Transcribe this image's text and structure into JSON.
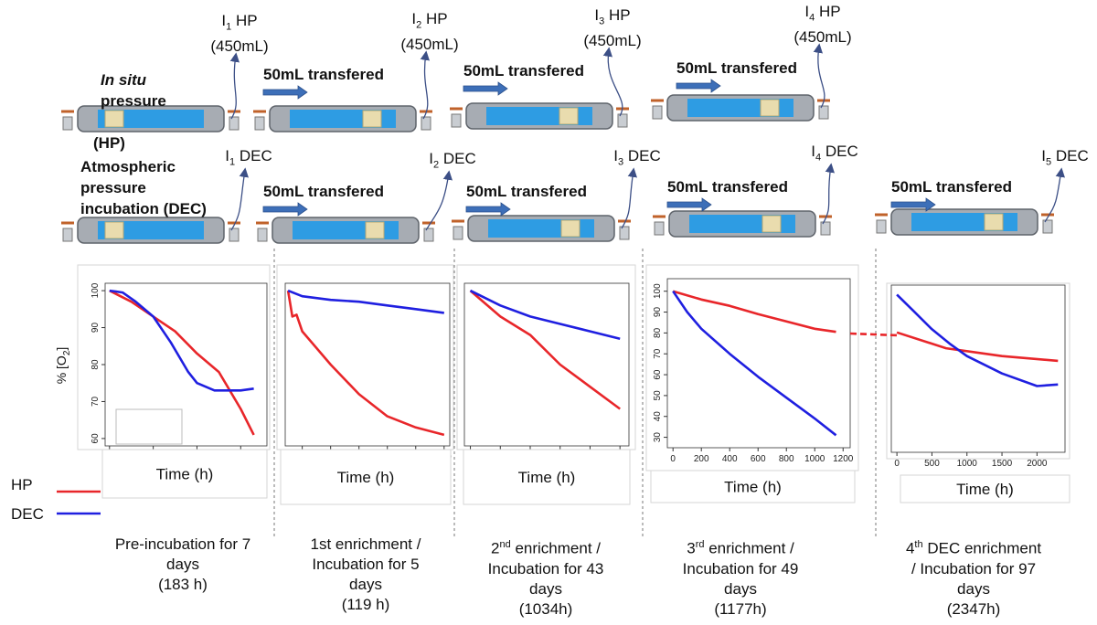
{
  "rows": {
    "hp": {
      "title_italic": "In situ",
      "title": "pressure",
      "abbr": "(HP)"
    },
    "dec": {
      "lines": [
        "Atmospheric",
        "pressure",
        "incubation (DEC)"
      ]
    }
  },
  "hp_steps": [
    {
      "i": "I",
      "sub": "1",
      "label": "HP",
      "volume": "(450mL)"
    },
    {
      "i": "I",
      "sub": "2",
      "label": "HP",
      "volume": "(450mL)"
    },
    {
      "i": "I",
      "sub": "3",
      "label": "HP",
      "volume": "(450mL)"
    },
    {
      "i": "I",
      "sub": "4",
      "label": "HP",
      "volume": "(450mL)"
    }
  ],
  "dec_steps": [
    {
      "i": "I",
      "sub": "1",
      "label": "DEC"
    },
    {
      "i": "I",
      "sub": "2",
      "label": "DEC"
    },
    {
      "i": "I",
      "sub": "3",
      "label": "DEC"
    },
    {
      "i": "I",
      "sub": "4",
      "label": "DEC"
    },
    {
      "i": "I",
      "sub": "5",
      "label": "DEC"
    }
  ],
  "hp_transfers": [
    "50mL transfered",
    "50mL transfered",
    "50mL transfered"
  ],
  "dec_transfers": [
    "50mL transfered",
    "50mL transfered",
    "50mL transfered",
    "50mL transfered"
  ],
  "chart_data": [
    {
      "type": "line",
      "ylabel": "% [O",
      "ylabel_sub": "2",
      "ylabel_end": "]",
      "xlabel": "Time (h)",
      "xlim": [
        -5,
        180
      ],
      "ylim": [
        58,
        102
      ],
      "xticks": [
        0,
        50,
        100,
        150
      ],
      "yticks": [
        60,
        70,
        80,
        90,
        100
      ],
      "series": [
        {
          "name": "HP",
          "color": "#e8262a",
          "x": [
            0,
            25,
            50,
            75,
            100,
            125,
            150,
            165
          ],
          "values": [
            100,
            97,
            93,
            89,
            83,
            78,
            68,
            61
          ]
        },
        {
          "name": "DEC",
          "color": "#1f1fe0",
          "x": [
            0,
            15,
            30,
            50,
            70,
            90,
            100,
            120,
            150,
            165
          ],
          "values": [
            100,
            99.5,
            97,
            93,
            86,
            78,
            75,
            73,
            73,
            73.5
          ]
        }
      ]
    },
    {
      "type": "line",
      "xlabel": "Time (h)",
      "xlim": [
        8,
        124
      ],
      "ylim": [
        58,
        102
      ],
      "xticks": [
        20,
        40,
        60,
        80,
        100,
        120
      ],
      "series": [
        {
          "name": "HP",
          "color": "#e8262a",
          "x": [
            10,
            13,
            16,
            20,
            40,
            60,
            80,
            100,
            120
          ],
          "values": [
            100,
            93,
            93.5,
            89,
            80,
            72,
            66,
            63,
            61
          ]
        },
        {
          "name": "DEC",
          "color": "#1f1fe0",
          "x": [
            10,
            20,
            40,
            60,
            80,
            100,
            120
          ],
          "values": [
            100,
            98.5,
            97.5,
            97,
            96,
            95,
            94
          ]
        }
      ]
    },
    {
      "type": "line",
      "xlabel": "Time (h)",
      "xlim": [
        -40,
        1060
      ],
      "ylim": [
        58,
        102
      ],
      "xticks": [
        0,
        200,
        400,
        600,
        800,
        1000
      ],
      "series": [
        {
          "name": "HP",
          "color": "#e8262a",
          "x": [
            0,
            200,
            400,
            600,
            800,
            1000
          ],
          "values": [
            100,
            93,
            88,
            80,
            74,
            68
          ]
        },
        {
          "name": "DEC",
          "color": "#1f1fe0",
          "x": [
            0,
            200,
            400,
            600,
            800,
            1000
          ],
          "values": [
            100,
            96,
            93,
            91,
            89,
            87
          ]
        }
      ]
    },
    {
      "type": "line",
      "xlabel": "Time (h)",
      "xlim": [
        -40,
        1250
      ],
      "ylim": [
        25,
        106
      ],
      "xticks": [
        0,
        200,
        400,
        600,
        800,
        1000,
        1200
      ],
      "yticks": [
        30,
        40,
        50,
        60,
        70,
        80,
        90,
        100
      ],
      "series": [
        {
          "name": "HP",
          "color": "#e8262a",
          "x": [
            0,
            200,
            400,
            600,
            800,
            1000,
            1150
          ],
          "values": [
            100,
            96,
            93,
            89,
            85.5,
            82,
            80.5
          ]
        },
        {
          "name": "DEC",
          "color": "#1f1fe0",
          "x": [
            0,
            100,
            200,
            400,
            600,
            800,
            1000,
            1150
          ],
          "values": [
            100,
            90,
            82,
            70,
            59,
            49,
            39,
            31
          ]
        }
      ]
    },
    {
      "type": "line",
      "xlabel": "Time (h)",
      "xlim": [
        -80,
        2400
      ],
      "ylim": [
        50,
        103
      ],
      "xticks": [
        0,
        500,
        1000,
        1500,
        2000
      ],
      "series": [
        {
          "name": "HP",
          "color": "#e8262a",
          "x": [
            0,
            700,
            1500,
            2300
          ],
          "values": [
            88,
            83,
            80.5,
            79
          ]
        },
        {
          "name": "DEC",
          "color": "#1f1fe0",
          "x": [
            0,
            250,
            500,
            750,
            1000,
            1500,
            2000,
            2300
          ],
          "values": [
            100,
            94.5,
            89,
            84.5,
            80.5,
            75,
            71,
            71.5
          ]
        }
      ]
    }
  ],
  "captions": [
    {
      "text": "Pre-incubation for 7 days",
      "hours": "(183 h)"
    },
    {
      "text": "1st enrichment / Incubation for 5 days",
      "hours": "(119 h)"
    },
    {
      "num": "2",
      "sup": "nd",
      "text": " enrichment / Incubation for 43 days",
      "hours": "(1034h)"
    },
    {
      "num": "3",
      "sup": "rd",
      "text": " enrichment / Incubation for 49 days",
      "hours": "(1177h)"
    },
    {
      "num": "4",
      "sup": "th",
      "text": " DEC enrichment / Incubation for 97 days",
      "hours": "(2347h)"
    }
  ]
}
